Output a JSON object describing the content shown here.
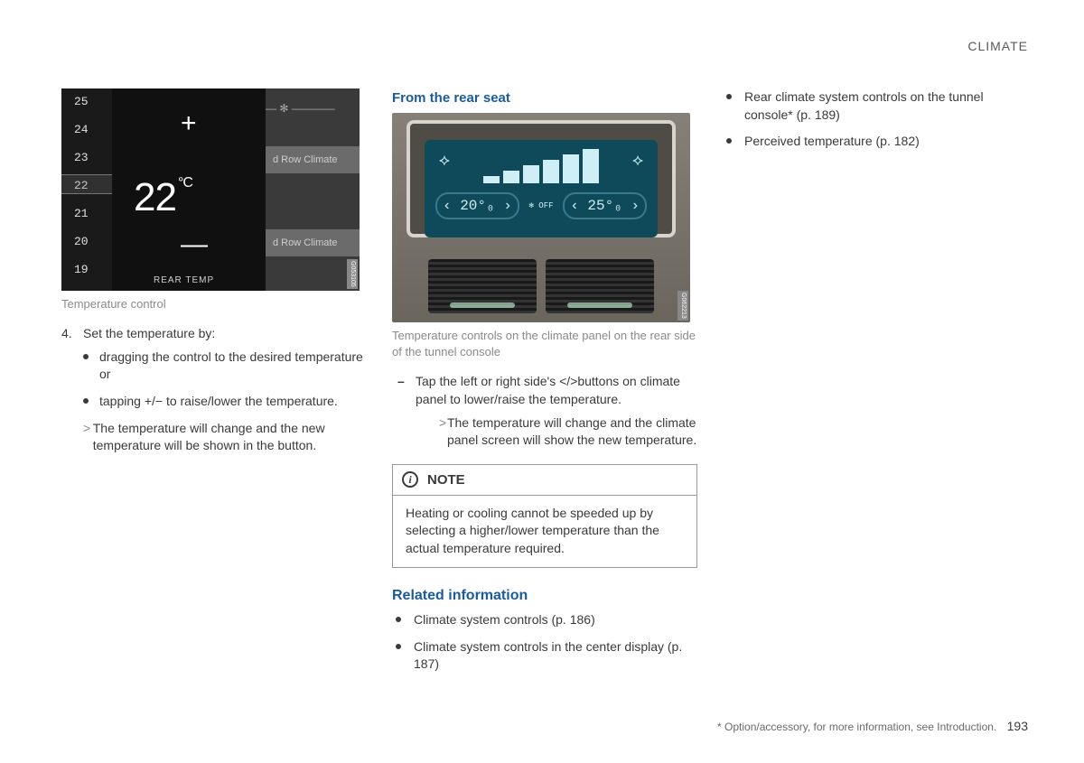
{
  "header": {
    "section": "CLIMATE"
  },
  "col1": {
    "fig": {
      "ticks": [
        "25",
        "24",
        "23",
        "22",
        "21",
        "20",
        "19"
      ],
      "selected_index": 3,
      "big_value": "22",
      "unit": "°C",
      "rear_label": "REAR  TEMP",
      "plus": "+",
      "minus": "—",
      "bg_row_a": "d Row Climate",
      "bg_row_b": "d Row Climate",
      "fan_label": "— ✻ ————",
      "code": "G053105"
    },
    "caption": "Temperature control",
    "step_num": "4.",
    "step_text": "Set the temperature by:",
    "bullets": [
      "dragging the control to the desired temperature or",
      "tapping +/− to raise/lower the temperature."
    ],
    "arrow": "The temperature will change and the new temperature will be shown in the button."
  },
  "col2": {
    "heading": "From the rear seat",
    "fig": {
      "left_temp": "‹ 20°₀ ›",
      "right_temp": "‹ 25°₀ ›",
      "off": "✻\nOFF",
      "bars": [
        8,
        14,
        20,
        26,
        32,
        38
      ],
      "seat_l": "⟡",
      "seat_r": "⟡",
      "code": "G062213"
    },
    "caption": "Temperature controls on the climate panel on the rear side of the tunnel console",
    "dash": "Tap the left or right side's </>buttons on climate panel to lower/raise the temperature.",
    "sub_arrow": "The temperature will change and the climate panel screen will show the new temperature.",
    "note_label": "NOTE",
    "note_body": "Heating or cooling cannot be speeded up by selecting a higher/lower temperature than the actual temperature required.",
    "related_heading": "Related information",
    "related": [
      "Climate system controls (p. 186)",
      "Climate system controls in the center display (p. 187)"
    ]
  },
  "col3": {
    "items": [
      "Rear climate system controls on the tunnel console* (p. 189)",
      "Perceived temperature (p. 182)"
    ]
  },
  "footer": {
    "note": "* Option/accessory, for more information, see Introduction.",
    "page": "193"
  }
}
